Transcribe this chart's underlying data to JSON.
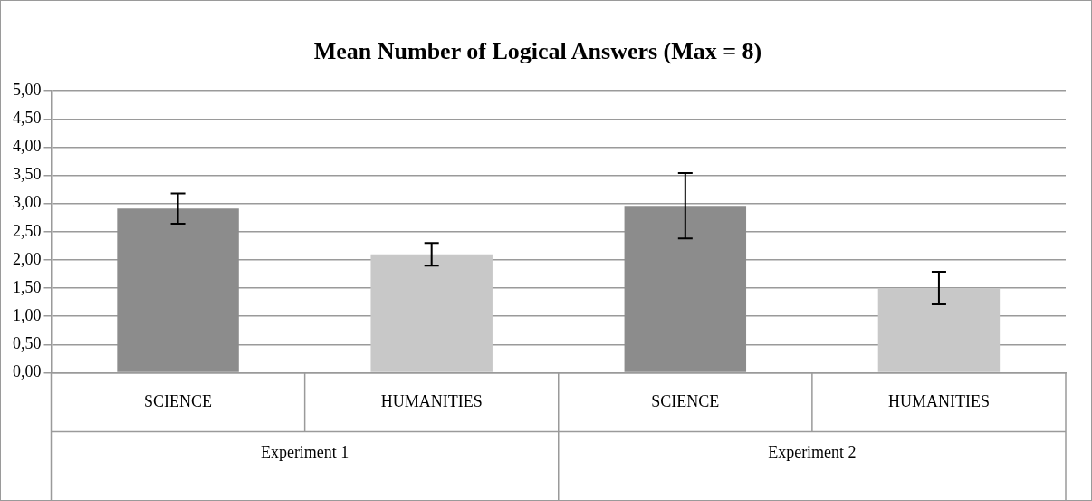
{
  "chart_data": {
    "type": "bar",
    "title": "Mean Number of Logical Answers (Max = 8)",
    "categories": [
      "SCIENCE",
      "HUMANITIES",
      "SCIENCE",
      "HUMANITIES"
    ],
    "values": [
      2.91,
      2.1,
      2.96,
      1.5
    ],
    "colors": [
      "#8c8c8c",
      "#c8c8c8",
      "#8c8c8c",
      "#c8c8c8"
    ],
    "errors": [
      0.27,
      0.2,
      0.58,
      0.29
    ],
    "annotations": [
      "Experiment 1",
      "Experiment 2"
    ],
    "ylim": [
      0,
      5
    ],
    "yticks": [
      {
        "value": 0,
        "label": "0,00"
      },
      {
        "value": 0.5,
        "label": "0,50"
      },
      {
        "value": 1,
        "label": "1,00"
      },
      {
        "value": 1.5,
        "label": "1,50"
      },
      {
        "value": 2,
        "label": "2,00"
      },
      {
        "value": 2.5,
        "label": "2,50"
      },
      {
        "value": 3,
        "label": "3,00"
      },
      {
        "value": 3.5,
        "label": "3,50"
      },
      {
        "value": 4,
        "label": "4,00"
      },
      {
        "value": 4.5,
        "label": "4,50"
      },
      {
        "value": 5,
        "label": "5,00"
      }
    ],
    "grid": "y",
    "legend": false
  }
}
